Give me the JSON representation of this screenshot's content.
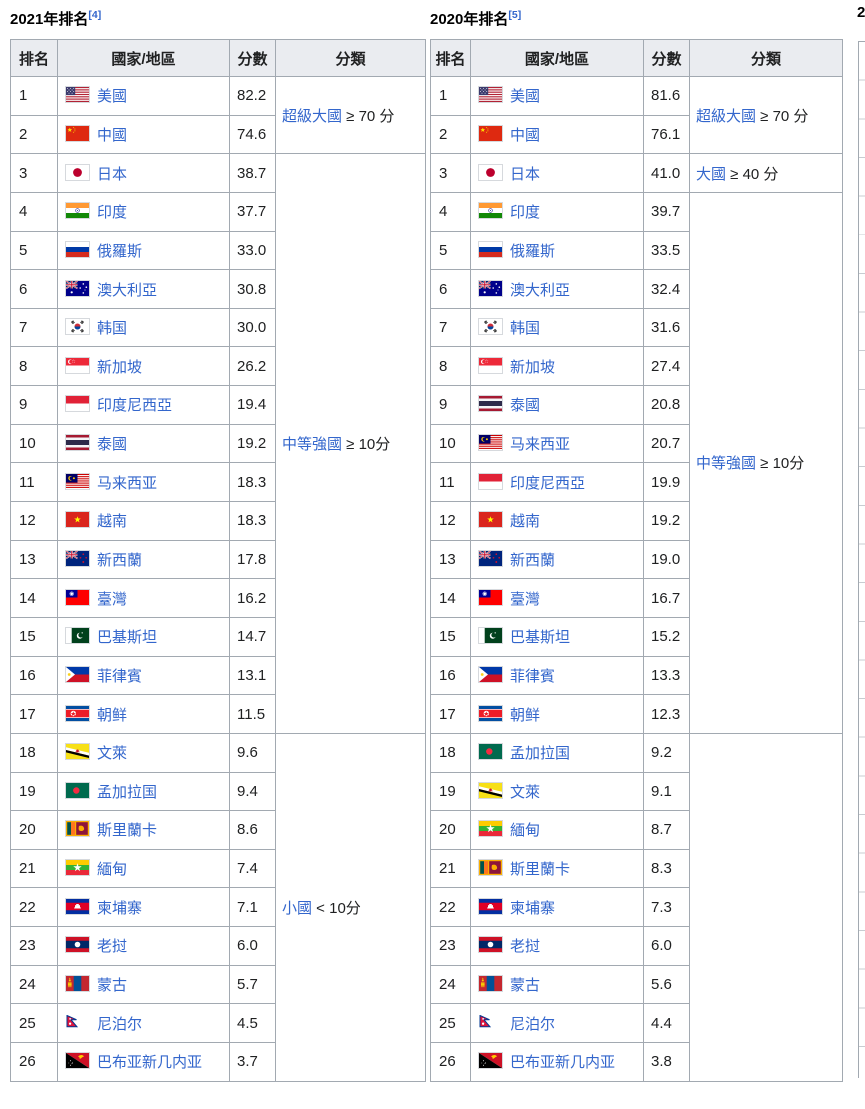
{
  "colors": {
    "link": "#3366cc",
    "text": "#202122",
    "border": "#a2a9b1",
    "header_bg": "#eaecf0",
    "page_bg": "#ffffff"
  },
  "columns": {
    "rank": "排名",
    "country": "國家/地區",
    "score": "分數",
    "category": "分類"
  },
  "tables": [
    {
      "title": "2021年排名",
      "ref": "[4]",
      "groups": [
        {
          "label": "超級大國",
          "suffix": " ≥ 70 分",
          "span": 2
        },
        {
          "label": "中等強國",
          "suffix": " ≥ 10分",
          "span": 15
        },
        {
          "label": "小國",
          "suffix": " < 10分",
          "span": 9
        }
      ],
      "rows": [
        {
          "rank": "1",
          "flag": "us",
          "country": "美國",
          "score": "82.2"
        },
        {
          "rank": "2",
          "flag": "cn",
          "country": "中國",
          "score": "74.6"
        },
        {
          "rank": "3",
          "flag": "jp",
          "country": "日本",
          "score": "38.7"
        },
        {
          "rank": "4",
          "flag": "in",
          "country": "印度",
          "score": "37.7"
        },
        {
          "rank": "5",
          "flag": "ru",
          "country": "俄羅斯",
          "score": "33.0"
        },
        {
          "rank": "6",
          "flag": "au",
          "country": "澳大利亞",
          "score": "30.8"
        },
        {
          "rank": "7",
          "flag": "kr",
          "country": "韩国",
          "score": "30.0"
        },
        {
          "rank": "8",
          "flag": "sg",
          "country": "新加坡",
          "score": "26.2"
        },
        {
          "rank": "9",
          "flag": "id",
          "country": "印度尼西亞",
          "score": "19.4"
        },
        {
          "rank": "10",
          "flag": "th",
          "country": "泰國",
          "score": "19.2"
        },
        {
          "rank": "11",
          "flag": "my",
          "country": "马来西亚",
          "score": "18.3"
        },
        {
          "rank": "12",
          "flag": "vn",
          "country": "越南",
          "score": "18.3"
        },
        {
          "rank": "13",
          "flag": "nz",
          "country": "新西蘭",
          "score": "17.8"
        },
        {
          "rank": "14",
          "flag": "tw",
          "country": "臺灣",
          "score": "16.2"
        },
        {
          "rank": "15",
          "flag": "pk",
          "country": "巴基斯坦",
          "score": "14.7"
        },
        {
          "rank": "16",
          "flag": "ph",
          "country": "菲律賓",
          "score": "13.1"
        },
        {
          "rank": "17",
          "flag": "kp",
          "country": "朝鲜",
          "score": "11.5"
        },
        {
          "rank": "18",
          "flag": "bn",
          "country": "文萊",
          "score": "9.6"
        },
        {
          "rank": "19",
          "flag": "bd",
          "country": "孟加拉国",
          "score": "9.4"
        },
        {
          "rank": "20",
          "flag": "lk",
          "country": "斯里蘭卡",
          "score": "8.6"
        },
        {
          "rank": "21",
          "flag": "mm",
          "country": "緬甸",
          "score": "7.4"
        },
        {
          "rank": "22",
          "flag": "kh",
          "country": "柬埔寨",
          "score": "7.1"
        },
        {
          "rank": "23",
          "flag": "la",
          "country": "老挝",
          "score": "6.0"
        },
        {
          "rank": "24",
          "flag": "mn",
          "country": "蒙古",
          "score": "5.7"
        },
        {
          "rank": "25",
          "flag": "np",
          "country": "尼泊尔",
          "score": "4.5"
        },
        {
          "rank": "26",
          "flag": "pg",
          "country": "巴布亚新几内亚",
          "score": "3.7"
        }
      ]
    },
    {
      "title": "2020年排名",
      "ref": "[5]",
      "groups": [
        {
          "label": "超級大國",
          "suffix": " ≥ 70 分",
          "span": 2
        },
        {
          "label": "大國",
          "suffix": " ≥ 40 分",
          "span": 1
        },
        {
          "label": "中等強國",
          "suffix": " ≥ 10分",
          "span": 14
        },
        {
          "label": "",
          "suffix": "",
          "span": 9
        }
      ],
      "rows": [
        {
          "rank": "1",
          "flag": "us",
          "country": "美國",
          "score": "81.6"
        },
        {
          "rank": "2",
          "flag": "cn",
          "country": "中國",
          "score": "76.1"
        },
        {
          "rank": "3",
          "flag": "jp",
          "country": "日本",
          "score": "41.0"
        },
        {
          "rank": "4",
          "flag": "in",
          "country": "印度",
          "score": "39.7"
        },
        {
          "rank": "5",
          "flag": "ru",
          "country": "俄羅斯",
          "score": "33.5"
        },
        {
          "rank": "6",
          "flag": "au",
          "country": "澳大利亞",
          "score": "32.4"
        },
        {
          "rank": "7",
          "flag": "kr",
          "country": "韩国",
          "score": "31.6"
        },
        {
          "rank": "8",
          "flag": "sg",
          "country": "新加坡",
          "score": "27.4"
        },
        {
          "rank": "9",
          "flag": "th",
          "country": "泰國",
          "score": "20.8"
        },
        {
          "rank": "10",
          "flag": "my",
          "country": "马来西亚",
          "score": "20.7"
        },
        {
          "rank": "11",
          "flag": "id",
          "country": "印度尼西亞",
          "score": "19.9"
        },
        {
          "rank": "12",
          "flag": "vn",
          "country": "越南",
          "score": "19.2"
        },
        {
          "rank": "13",
          "flag": "nz",
          "country": "新西蘭",
          "score": "19.0"
        },
        {
          "rank": "14",
          "flag": "tw",
          "country": "臺灣",
          "score": "16.7"
        },
        {
          "rank": "15",
          "flag": "pk",
          "country": "巴基斯坦",
          "score": "15.2"
        },
        {
          "rank": "16",
          "flag": "ph",
          "country": "菲律賓",
          "score": "13.3"
        },
        {
          "rank": "17",
          "flag": "kp",
          "country": "朝鲜",
          "score": "12.3"
        },
        {
          "rank": "18",
          "flag": "bd",
          "country": "孟加拉国",
          "score": "9.2"
        },
        {
          "rank": "19",
          "flag": "bn",
          "country": "文萊",
          "score": "9.1"
        },
        {
          "rank": "20",
          "flag": "mm",
          "country": "緬甸",
          "score": "8.7"
        },
        {
          "rank": "21",
          "flag": "lk",
          "country": "斯里蘭卡",
          "score": "8.3"
        },
        {
          "rank": "22",
          "flag": "kh",
          "country": "柬埔寨",
          "score": "7.3"
        },
        {
          "rank": "23",
          "flag": "la",
          "country": "老挝",
          "score": "6.0"
        },
        {
          "rank": "24",
          "flag": "mn",
          "country": "蒙古",
          "score": "5.6"
        },
        {
          "rank": "25",
          "flag": "np",
          "country": "尼泊尔",
          "score": "4.4"
        },
        {
          "rank": "26",
          "flag": "pg",
          "country": "巴布亚新几内亚",
          "score": "3.8"
        }
      ]
    }
  ],
  "cutoff_table": {
    "title_fragment": "2"
  }
}
